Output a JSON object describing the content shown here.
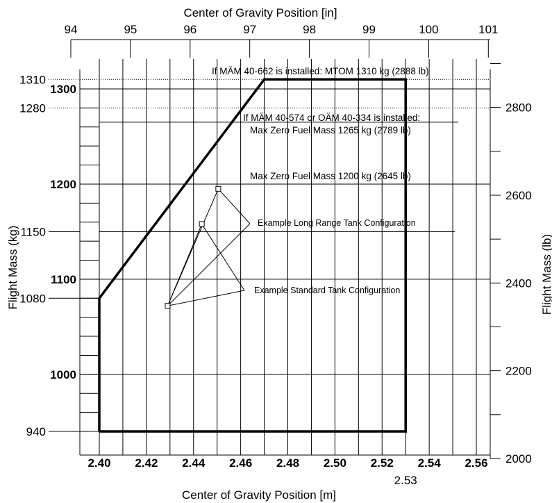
{
  "chart_data": {
    "type": "line",
    "title": "",
    "xlabel": "Center of Gravity Position [m]",
    "xlabel_top": "Center of Gravity Position [in]",
    "ylabel": "Flight Mass (kg)",
    "ylabel_right": "Flight Mass (lb)",
    "xlim": [
      2.4,
      2.56
    ],
    "ylim": [
      940,
      1310
    ],
    "grid": true,
    "x_ticks": [
      {
        "value": 2.4,
        "label": "2.40"
      },
      {
        "value": 2.42,
        "label": "2.42"
      },
      {
        "value": 2.44,
        "label": "2.44"
      },
      {
        "value": 2.46,
        "label": "2.46"
      },
      {
        "value": 2.48,
        "label": "2.48"
      },
      {
        "value": 2.5,
        "label": "2.50"
      },
      {
        "value": 2.52,
        "label": "2.52"
      },
      {
        "value": 2.54,
        "label": "2.54"
      },
      {
        "value": 2.56,
        "label": "2.56"
      }
    ],
    "x_extra_label": {
      "value": 2.53,
      "label": "2.53"
    },
    "top_ticks": [
      {
        "value": 94,
        "label": "94"
      },
      {
        "value": 95,
        "label": "95"
      },
      {
        "value": 96,
        "label": "96"
      },
      {
        "value": 97,
        "label": "97"
      },
      {
        "value": 98,
        "label": "98"
      },
      {
        "value": 99,
        "label": "99"
      },
      {
        "value": 100,
        "label": "100"
      },
      {
        "value": 101,
        "label": "101"
      }
    ],
    "y_bold_ticks": [
      {
        "value": 1000,
        "label": "1000"
      },
      {
        "value": 1100,
        "label": "1100"
      },
      {
        "value": 1200,
        "label": "1200"
      },
      {
        "value": 1300,
        "label": "1300"
      }
    ],
    "y_plain_ticks": [
      {
        "value": 940,
        "label": "940"
      },
      {
        "value": 1080,
        "label": "1080"
      },
      {
        "value": 1150,
        "label": "1150"
      },
      {
        "value": 1280,
        "label": "1280"
      },
      {
        "value": 1310,
        "label": "1310"
      }
    ],
    "right_ticks": [
      {
        "value": 2000,
        "label": "2000"
      },
      {
        "value": 2200,
        "label": "2200"
      },
      {
        "value": 2400,
        "label": "2400"
      },
      {
        "value": 2600,
        "label": "2600"
      },
      {
        "value": 2800,
        "label": "2800"
      }
    ],
    "envelope": {
      "x": [
        2.4,
        2.4,
        2.47,
        2.53,
        2.53,
        2.4
      ],
      "y": [
        940,
        1080,
        1310,
        1310,
        940,
        940
      ]
    },
    "reference_lines": [
      {
        "y": 1265,
        "x_range": [
          2.4,
          2.55
        ],
        "label": "If MÄM 40-574 or OÄM 40-334 is installed:",
        "label2": "Max Zero Fuel Mass 1265 kg (2789 lb)"
      },
      {
        "y": 1200,
        "x_range": [
          2.4,
          2.55
        ],
        "label": "Max Zero Fuel Mass 1200 kg (2645 lb)"
      },
      {
        "y": 1150,
        "x_range": [
          2.4,
          2.55
        ],
        "label": ""
      }
    ],
    "dotted_lines": [
      {
        "y": 1310,
        "label": "If MÄM 40-662 is installed: MTOM 1310 kg (2888 lb)"
      },
      {
        "y": 1280,
        "label": ""
      }
    ],
    "example_points": [
      {
        "x": 2.429,
        "y": 1072
      },
      {
        "x": 2.4435,
        "y": 1158
      },
      {
        "x": 2.4505,
        "y": 1195
      }
    ],
    "annotations": {
      "long_range": "Example Long Range Tank Configuration",
      "standard": "Example Standard Tank Configuration"
    }
  }
}
